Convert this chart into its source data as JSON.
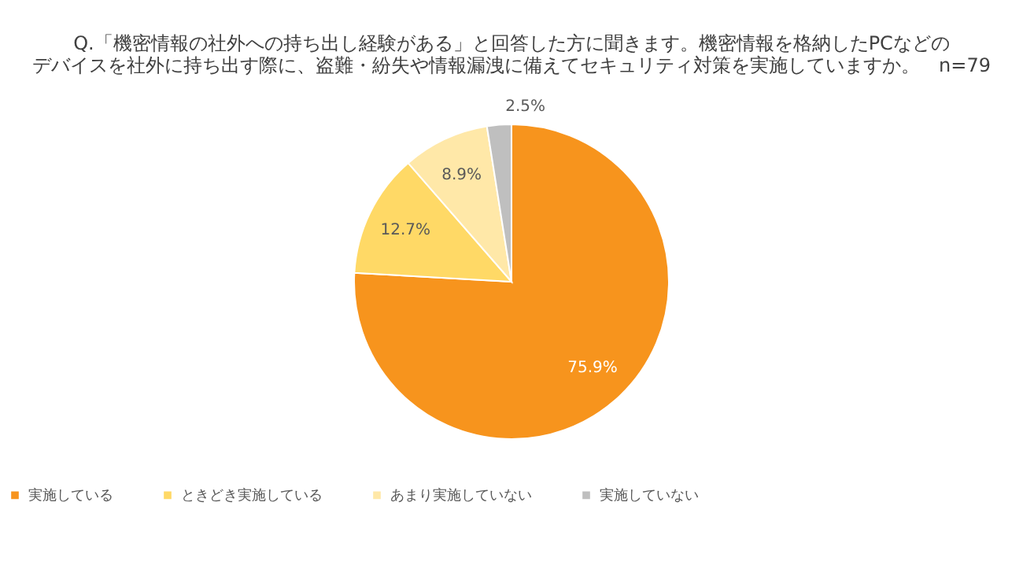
{
  "chart_data": {
    "type": "pie",
    "title": [
      "Q.「機密情報の社外への持ち出し経験がある」と回答した方に聞きます。機密情報を格納したPCなどの",
      "デバイスを社外に持ち出す際に、盗難・紛失や情報漏洩に備えてセキュリティ対策を実施していますか。　n=79"
    ],
    "categories": [
      "実施している",
      "ときどき実施している",
      "あまり実施していない",
      "実施していない"
    ],
    "values": [
      75.9,
      12.7,
      8.9,
      2.5
    ],
    "colors": [
      "#f7941d",
      "#ffd966",
      "#ffe8a8",
      "#bfbfbf"
    ],
    "value_labels": [
      "75.9%",
      "12.7%",
      "8.9%",
      "2.5%"
    ],
    "legend": "bottom"
  }
}
